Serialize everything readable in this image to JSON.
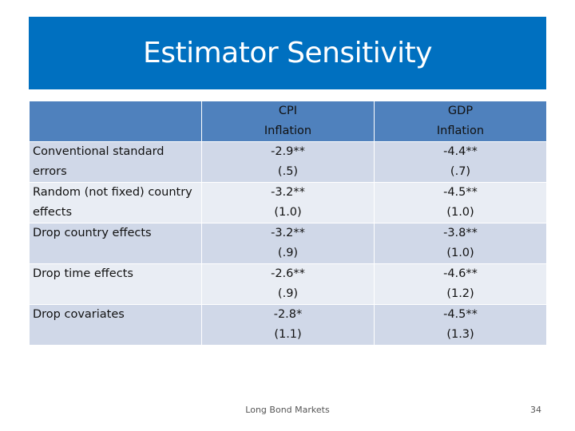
{
  "slide": {
    "title": "Estimator Sensitivity",
    "colors": {
      "banner": "#0070c0",
      "header_row": "#4f81bd",
      "band_dark": "#d0d8e8",
      "band_light": "#e9edf4"
    }
  },
  "table": {
    "columns": [
      {
        "lines": []
      },
      {
        "lines": [
          "CPI",
          "Inflation"
        ]
      },
      {
        "lines": [
          "GDP",
          "Inflation"
        ]
      }
    ],
    "rows": [
      {
        "label": [
          "Conventional standard",
          "errors"
        ],
        "cpi": [
          "-2.9**",
          "(.5)"
        ],
        "gdp": [
          "-4.4**",
          "(.7)"
        ]
      },
      {
        "label": [
          "Random (not fixed) country",
          "effects"
        ],
        "cpi": [
          "-3.2**",
          "(1.0)"
        ],
        "gdp": [
          "-4.5**",
          "(1.0)"
        ]
      },
      {
        "label": [
          "Drop country effects",
          ""
        ],
        "cpi": [
          "-3.2**",
          "(.9)"
        ],
        "gdp": [
          "-3.8**",
          "(1.0)"
        ]
      },
      {
        "label": [
          "Drop time effects",
          ""
        ],
        "cpi": [
          "-2.6**",
          "(.9)"
        ],
        "gdp": [
          "-4.6**",
          "(1.2)"
        ]
      },
      {
        "label": [
          "Drop covariates",
          ""
        ],
        "cpi": [
          "-2.8*",
          "(1.1)"
        ],
        "gdp": [
          "-4.5**",
          "(1.3)"
        ]
      }
    ]
  },
  "footer": {
    "source": "Long Bond Markets",
    "page_number": "34"
  }
}
